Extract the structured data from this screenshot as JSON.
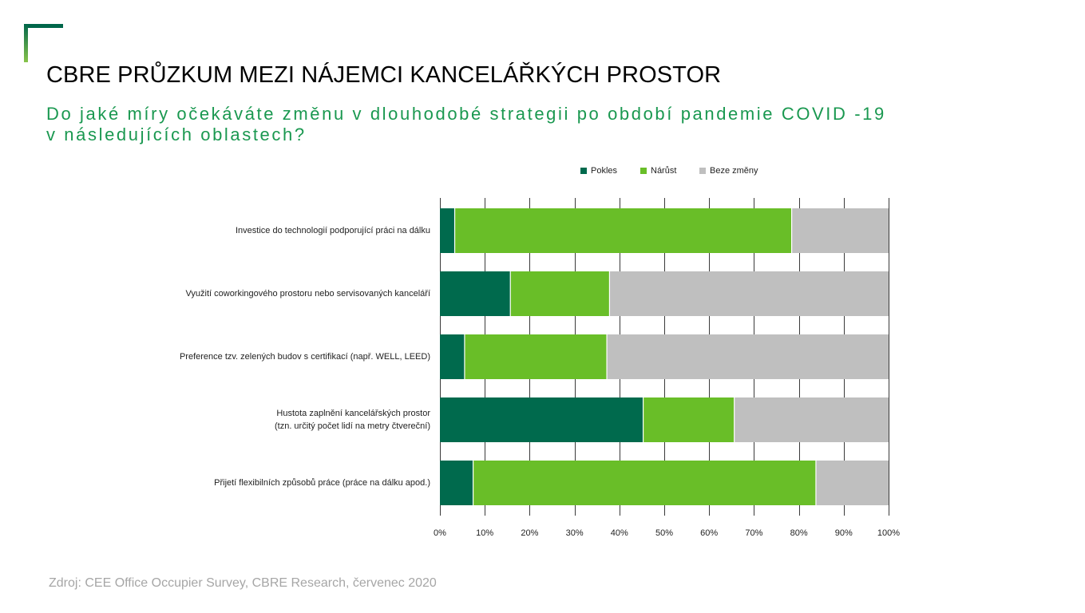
{
  "title": "CBRE PRŮZKUM MEZI NÁJEMCI KANCELÁŘKÝCH PROSTOR",
  "subtitle_lines": [
    "Do jaké míry očekáváte změnu v dlouhodobé strategii po období pandemie COVID -19",
    "v následujících oblastech?"
  ],
  "source": "Zdroj: CEE Office Occupier Survey, CBRE Research, červenec 2020",
  "chart_data": {
    "type": "bar",
    "orientation": "horizontal",
    "stacked": true,
    "categories": [
      [
        "Investice do technologií podporující práci na dálku"
      ],
      [
        "Využití coworkingového prostoru nebo servisovaných kanceláří"
      ],
      [
        "Preference tzv. zelených budov s certifikací (např. WELL, LEED)"
      ],
      [
        "Hustota zaplnění kancelářských prostor",
        "(tzn. určitý počet lidí na metry čtvereční)"
      ],
      [
        "Přijetí flexibilních způsobů práce (práce na dálku apod.)"
      ]
    ],
    "series": [
      {
        "name": "Pokles",
        "color": "#006a4d",
        "values": [
          3.3,
          15.7,
          5.5,
          45.3,
          7.4
        ]
      },
      {
        "name": "Nárůst",
        "color": "#69be28",
        "values": [
          75.1,
          22.1,
          31.7,
          20.3,
          76.4
        ]
      },
      {
        "name": "Beze změny",
        "color": "#bfbfbf",
        "values": [
          21.6,
          62.2,
          62.8,
          34.4,
          16.2
        ]
      }
    ],
    "xlim": [
      0,
      100
    ],
    "xticks": [
      "0%",
      "10%",
      "20%",
      "30%",
      "40%",
      "50%",
      "60%",
      "70%",
      "80%",
      "90%",
      "100%"
    ],
    "grid": true,
    "legend_position": "top"
  }
}
